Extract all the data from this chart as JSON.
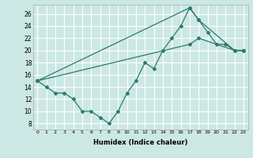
{
  "xlabel": "Humidex (Indice chaleur)",
  "background_color": "#cce8e4",
  "grid_color": "#ffffff",
  "line_color": "#2d7a6e",
  "xlim": [
    -0.5,
    23.5
  ],
  "ylim": [
    7,
    27.5
  ],
  "xticks": [
    0,
    1,
    2,
    3,
    4,
    5,
    6,
    7,
    8,
    9,
    10,
    11,
    12,
    13,
    14,
    15,
    16,
    17,
    18,
    19,
    20,
    21,
    22,
    23
  ],
  "yticks": [
    8,
    10,
    12,
    14,
    16,
    18,
    20,
    22,
    24,
    26
  ],
  "line1_x": [
    0,
    1,
    2,
    3,
    4,
    5,
    6,
    7,
    8,
    9,
    10,
    11,
    12,
    13,
    14,
    15,
    16,
    17,
    18,
    19,
    20,
    21,
    22,
    23
  ],
  "line1_y": [
    15,
    14,
    13,
    13,
    12,
    10,
    10,
    9,
    8,
    10,
    13,
    15,
    18,
    17,
    20,
    22,
    24,
    27,
    25,
    23,
    21,
    21,
    20,
    20
  ],
  "line2_x": [
    0,
    17,
    18,
    22,
    23
  ],
  "line2_y": [
    15,
    27,
    25,
    20,
    20
  ],
  "line3_x": [
    0,
    17,
    18,
    22,
    23
  ],
  "line3_y": [
    15,
    21,
    22,
    20,
    20
  ]
}
